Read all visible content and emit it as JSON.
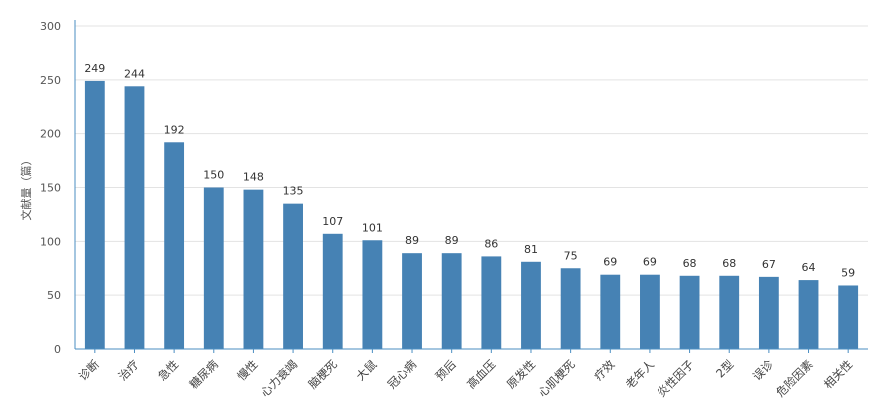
{
  "chart_data": {
    "type": "bar",
    "title": "",
    "xlabel": "",
    "ylabel": "文献量（篇）",
    "ylim": [
      0,
      300
    ],
    "yticks": [
      0,
      50,
      100,
      150,
      200,
      250,
      300
    ],
    "grid": true,
    "legend": "none",
    "bar_color": "#4682b4",
    "categories": [
      "诊断",
      "治疗",
      "急性",
      "糖尿病",
      "慢性",
      "心力衰竭",
      "脑梗死",
      "大鼠",
      "冠心病",
      "预后",
      "高血压",
      "原发性",
      "心肌梗死",
      "疗效",
      "老年人",
      "炎性因子",
      "2型",
      "误诊",
      "危险因素",
      "相关性"
    ],
    "values": [
      249,
      244,
      192,
      150,
      148,
      135,
      107,
      101,
      89,
      89,
      86,
      81,
      75,
      69,
      69,
      68,
      68,
      67,
      64,
      59
    ]
  }
}
